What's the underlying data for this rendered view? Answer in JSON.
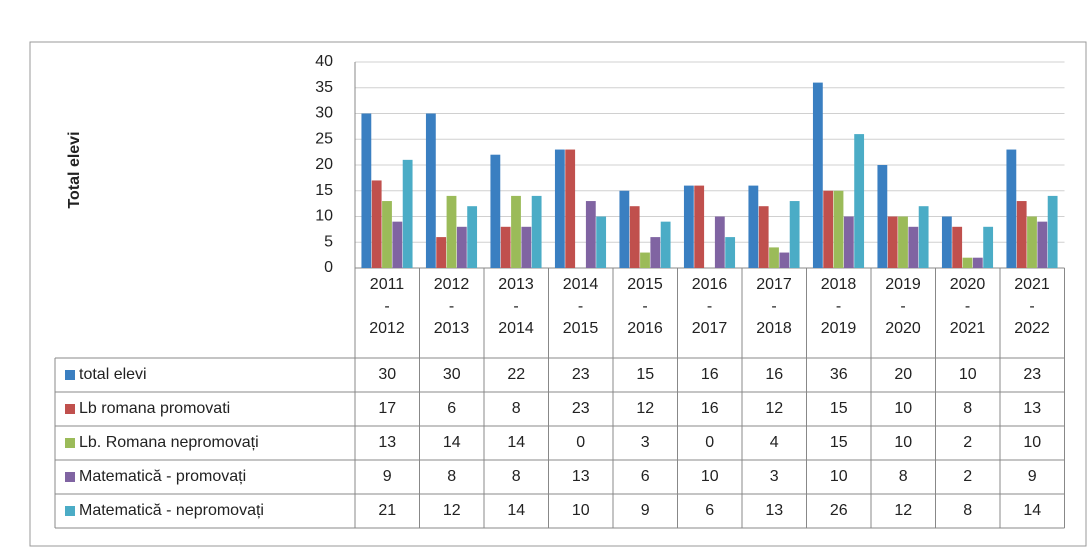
{
  "chart_data": {
    "type": "bar",
    "y_label": "Total elevi",
    "categories": [
      "2011\n-\n2012",
      "2012\n-\n2013",
      "2013\n-\n2014",
      "2014\n-\n2015",
      "2015\n-\n2016",
      "2016\n-\n2017",
      "2017\n-\n2018",
      "2018\n-\n2019",
      "2019\n-\n2020",
      "2020\n-\n2021",
      "2021\n-\n2022"
    ],
    "series": [
      {
        "name": "total elevi",
        "color": "#3a7fc1",
        "values": [
          30,
          30,
          22,
          23,
          15,
          16,
          16,
          36,
          20,
          10,
          23
        ]
      },
      {
        "name": "Lb romana promovati",
        "color": "#c0504d",
        "values": [
          17,
          6,
          8,
          23,
          12,
          16,
          12,
          15,
          10,
          8,
          13
        ]
      },
      {
        "name": "Lb. Romana nepromovați",
        "color": "#9bbb59",
        "values": [
          13,
          14,
          14,
          0,
          3,
          0,
          4,
          15,
          10,
          2,
          10
        ]
      },
      {
        "name": "Matematică - promovați",
        "color": "#8064a2",
        "values": [
          9,
          8,
          8,
          13,
          6,
          10,
          3,
          10,
          8,
          2,
          9
        ]
      },
      {
        "name": "Matematică - nepromovați",
        "color": "#4bacc6",
        "values": [
          21,
          12,
          14,
          10,
          9,
          6,
          13,
          26,
          12,
          8,
          14
        ]
      }
    ],
    "ylim": [
      0,
      40
    ],
    "yticks": [
      0,
      5,
      10,
      15,
      20,
      25,
      30,
      35,
      40
    ],
    "grid": true
  }
}
